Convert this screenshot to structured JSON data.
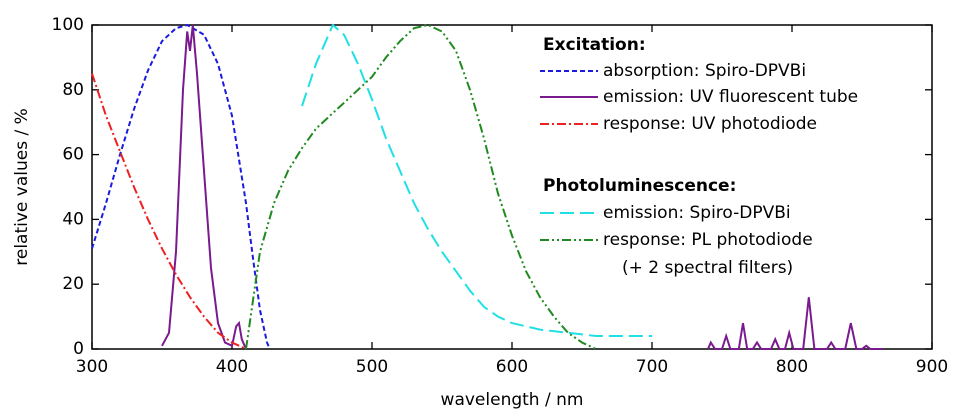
{
  "chart_data": {
    "type": "line",
    "x_label": "wavelength / nm",
    "y_label": "relative values / %",
    "xlim": [
      300,
      900
    ],
    "xticks": [
      300,
      400,
      500,
      600,
      700,
      800,
      900
    ],
    "ylim": [
      0,
      100
    ],
    "yticks": [
      0,
      20,
      40,
      60,
      80,
      100
    ],
    "grid": false,
    "legend": "upper right",
    "legend_headings": [
      "Excitation:",
      "Photoluminescence:"
    ],
    "annotations": [
      "(+ 2 spectral filters)"
    ],
    "series": [
      {
        "name": "absorption: Spiro-DPVBi",
        "color": "#1a1ae0",
        "dash": "dashed",
        "x": [
          300,
          310,
          320,
          330,
          340,
          350,
          360,
          368,
          380,
          390,
          400,
          410,
          415,
          420,
          425,
          427
        ],
        "values": [
          31,
          45,
          60,
          74,
          86,
          95,
          99,
          100,
          97,
          88,
          72,
          45,
          28,
          12,
          2,
          0
        ]
      },
      {
        "name": "emission: UV fluorescent tube",
        "color": "#7a1a8f",
        "dash": "solid",
        "x": [
          350,
          355,
          360,
          365,
          368,
          370,
          372,
          375,
          380,
          385,
          390,
          395,
          400,
          403,
          405,
          407,
          410,
          600,
          740,
          742,
          745,
          750,
          753,
          756,
          762,
          765,
          768,
          772,
          775,
          778,
          785,
          788,
          791,
          795,
          798,
          801,
          808,
          812,
          816,
          825,
          828,
          831,
          838,
          842,
          846,
          850,
          853,
          856,
          865
        ],
        "values": [
          1,
          5,
          30,
          80,
          98,
          92,
          100,
          85,
          55,
          25,
          8,
          2,
          1,
          7,
          8,
          3,
          0,
          null,
          0,
          2,
          0,
          0,
          4,
          0,
          0,
          8,
          0,
          0,
          2,
          0,
          0,
          3,
          0,
          0,
          5,
          0,
          0,
          16,
          0,
          0,
          2,
          0,
          0,
          8,
          0,
          0,
          1,
          0,
          0
        ]
      },
      {
        "name": "response: UV photodiode",
        "color": "#ee2020",
        "dash": "dashdot",
        "x": [
          300,
          310,
          320,
          330,
          340,
          350,
          360,
          370,
          380,
          390,
          400,
          410
        ],
        "values": [
          85,
          72,
          61,
          50,
          40,
          31,
          23,
          16,
          10,
          5,
          2,
          0
        ]
      },
      {
        "name": "emission: Spiro-DPVBi",
        "color": "#20e0e6",
        "dash": "longdash",
        "x": [
          450,
          460,
          472,
          480,
          490,
          500,
          510,
          520,
          530,
          540,
          550,
          560,
          570,
          580,
          590,
          600,
          620,
          640,
          660,
          680,
          700
        ],
        "values": [
          75,
          88,
          100,
          97,
          88,
          77,
          65,
          55,
          45,
          37,
          30,
          24,
          18,
          13,
          10,
          8,
          6,
          5,
          4,
          4,
          4
        ]
      },
      {
        "name": "response: PL photodiode",
        "color": "#1f8a1f",
        "dash": "dashdotdot",
        "x": [
          410,
          415,
          420,
          430,
          440,
          450,
          460,
          470,
          480,
          490,
          500,
          510,
          520,
          530,
          540,
          550,
          560,
          570,
          580,
          590,
          600,
          610,
          620,
          630,
          640,
          650,
          660
        ],
        "values": [
          0,
          15,
          30,
          45,
          55,
          62,
          68,
          72,
          76,
          80,
          84,
          90,
          95,
          99,
          100,
          98,
          92,
          80,
          65,
          48,
          35,
          24,
          16,
          10,
          5,
          2,
          0
        ]
      }
    ]
  }
}
